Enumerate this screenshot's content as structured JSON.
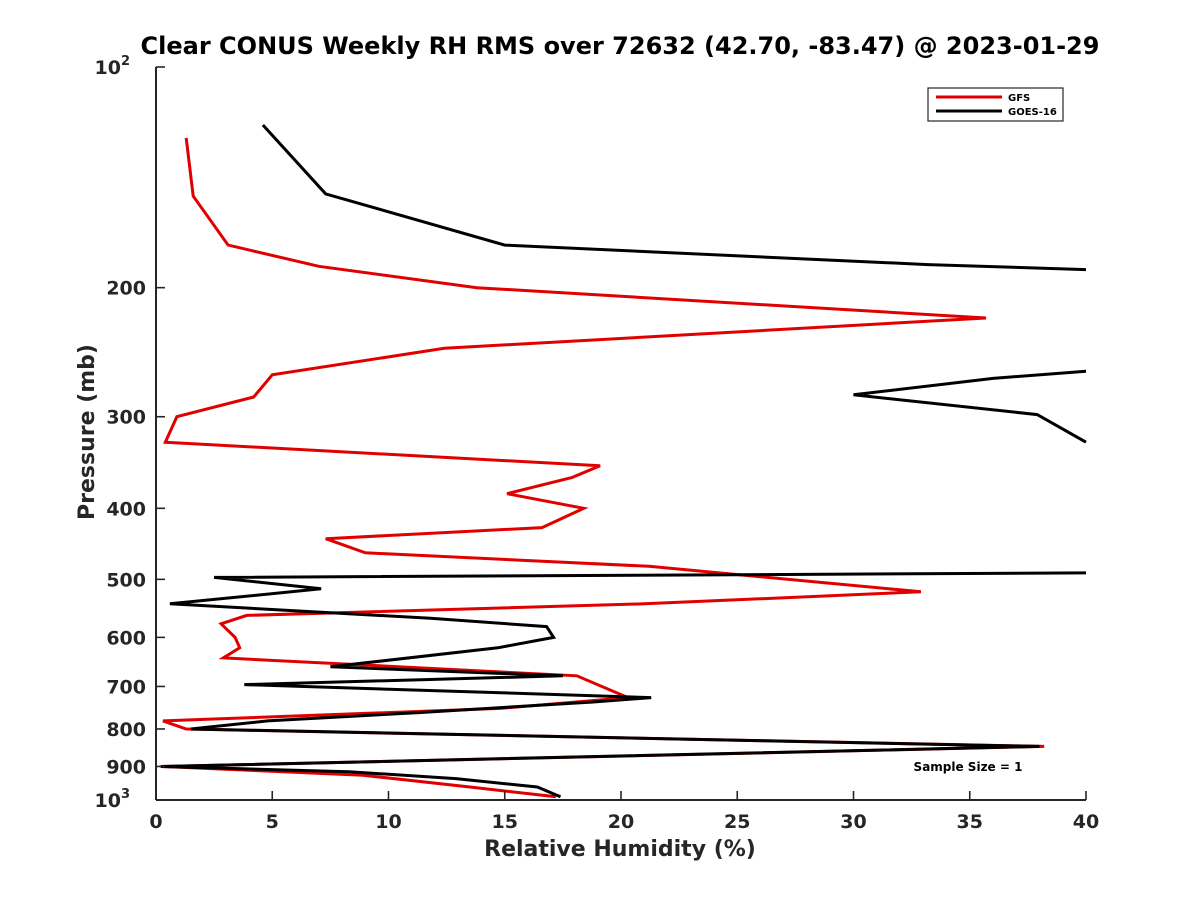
{
  "chart_data": {
    "type": "line",
    "title": "Clear CONUS Weekly RH RMS over 72632 (42.70, -83.47) @ 2023-01-29",
    "xlabel": "Relative Humidity (%)",
    "ylabel": "Pressure (mb)",
    "xlim": [
      0,
      40
    ],
    "ylim": [
      100,
      1000
    ],
    "y_scale": "log",
    "y_reversed": true,
    "x_ticks": [
      {
        "value": 0,
        "label": "0"
      },
      {
        "value": 5,
        "label": "5"
      },
      {
        "value": 10,
        "label": "10"
      },
      {
        "value": 15,
        "label": "15"
      },
      {
        "value": 20,
        "label": "20"
      },
      {
        "value": 25,
        "label": "25"
      },
      {
        "value": 30,
        "label": "30"
      },
      {
        "value": 35,
        "label": "35"
      },
      {
        "value": 40,
        "label": "40"
      }
    ],
    "y_ticks": [
      {
        "value": 100,
        "base": "10",
        "exp": "2"
      },
      {
        "value": 200,
        "label": "200"
      },
      {
        "value": 300,
        "label": "300"
      },
      {
        "value": 400,
        "label": "400"
      },
      {
        "value": 500,
        "label": "500"
      },
      {
        "value": 600,
        "label": "600"
      },
      {
        "value": 700,
        "label": "700"
      },
      {
        "value": 800,
        "label": "800"
      },
      {
        "value": 900,
        "label": "900"
      },
      {
        "value": 1000,
        "base": "10",
        "exp": "3"
      }
    ],
    "legend_position": "top-right",
    "grid": false,
    "annotation": "Sample Size = 1",
    "series": [
      {
        "name": "GFS",
        "color": "#e00000",
        "points": [
          [
            1.3,
            125
          ],
          [
            1.6,
            150
          ],
          [
            3.1,
            175
          ],
          [
            7.0,
            187
          ],
          [
            13.8,
            200
          ],
          [
            35.7,
            220
          ],
          [
            12.4,
            242
          ],
          [
            5.0,
            263
          ],
          [
            4.2,
            282
          ],
          [
            0.9,
            300
          ],
          [
            0.4,
            325
          ],
          [
            19.1,
            350
          ],
          [
            17.9,
            363
          ],
          [
            15.1,
            382
          ],
          [
            18.4,
            400
          ],
          [
            16.6,
            425
          ],
          [
            7.3,
            440
          ],
          [
            9.0,
            460
          ],
          [
            21.2,
            480
          ],
          [
            32.9,
            520
          ],
          [
            21.0,
            540
          ],
          [
            3.9,
            560
          ],
          [
            2.8,
            575
          ],
          [
            3.4,
            600
          ],
          [
            3.6,
            620
          ],
          [
            2.9,
            640
          ],
          [
            18.1,
            677
          ],
          [
            20.3,
            725
          ],
          [
            14.8,
            750
          ],
          [
            0.3,
            780
          ],
          [
            1.3,
            800
          ],
          [
            38.2,
            845
          ],
          [
            0.3,
            900
          ],
          [
            8.9,
            925
          ],
          [
            13.5,
            960
          ],
          [
            17.2,
            990
          ]
        ]
      },
      {
        "name": "GOES-16",
        "color": "#000000",
        "points": [
          [
            4.6,
            120
          ],
          [
            7.3,
            149
          ],
          [
            15.0,
            175
          ],
          [
            33.2,
            186
          ],
          [
            40.0,
            189
          ],
          [
            null,
            null
          ],
          [
            40.0,
            260
          ],
          [
            36.0,
            266
          ],
          [
            30.0,
            280
          ],
          [
            37.9,
            298
          ],
          [
            40.0,
            325
          ],
          [
            null,
            null
          ],
          [
            40.0,
            490
          ],
          [
            2.5,
            497
          ],
          [
            7.1,
            515
          ],
          [
            0.6,
            540
          ],
          [
            11.8,
            565
          ],
          [
            16.8,
            580
          ],
          [
            17.1,
            600
          ],
          [
            14.7,
            620
          ],
          [
            7.5,
            658
          ],
          [
            17.5,
            677
          ],
          [
            3.8,
            696
          ],
          [
            21.3,
            725
          ],
          [
            18.8,
            735
          ],
          [
            11.3,
            760
          ],
          [
            4.8,
            780
          ],
          [
            2.3,
            795
          ],
          [
            1.5,
            800
          ],
          [
            38.0,
            845
          ],
          [
            0.2,
            900
          ],
          [
            8.3,
            915
          ],
          [
            12.9,
            935
          ],
          [
            16.4,
            960
          ],
          [
            17.4,
            990
          ]
        ]
      }
    ]
  }
}
